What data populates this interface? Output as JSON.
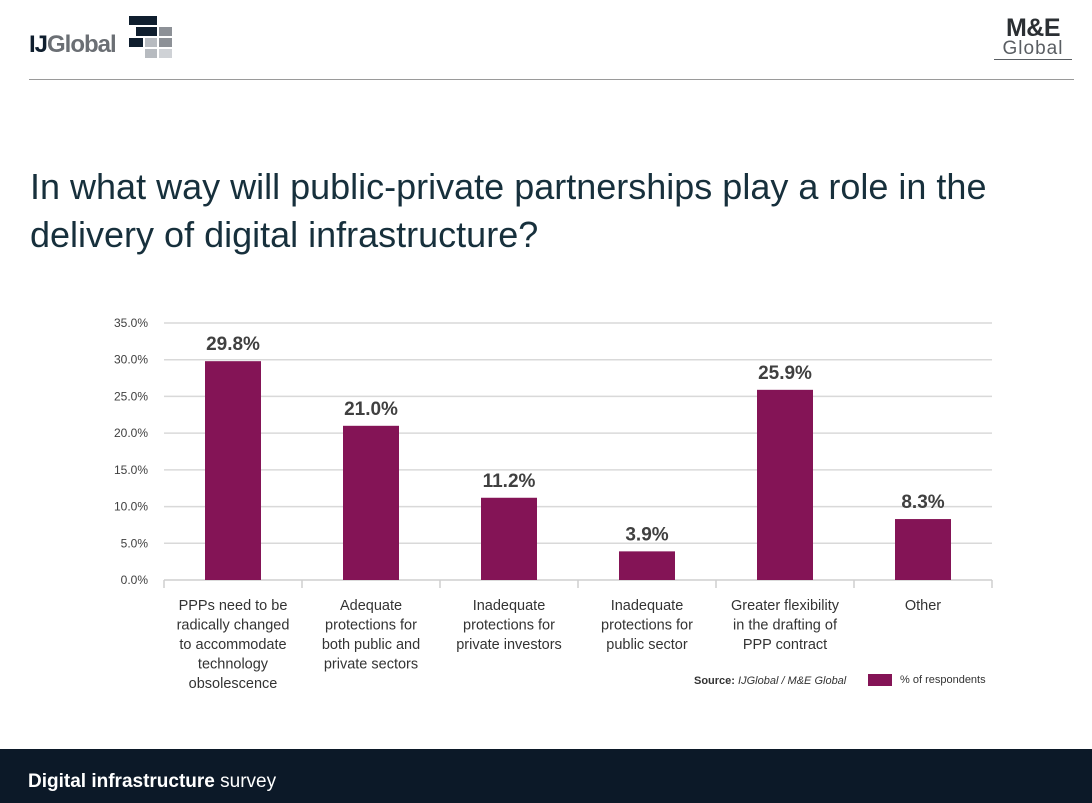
{
  "header": {
    "left_logo": {
      "ij": "IJ",
      "global": "Global"
    },
    "right_logo": {
      "top": "M&E",
      "bottom": "Global"
    }
  },
  "title": "In what way will public-private partnerships play a role in the delivery of digital infrastructure?",
  "colors": {
    "bar": "#841456",
    "footer": "#0c1928",
    "title": "#17303c"
  },
  "chart_data": {
    "type": "bar",
    "title": "",
    "xlabel": "",
    "ylabel": "",
    "categories": [
      [
        "PPPs need to be",
        "radically changed",
        "to accommodate",
        "technology",
        "obsolescence"
      ],
      [
        "Adequate",
        "protections for",
        "both public and",
        "private sectors"
      ],
      [
        "Inadequate",
        "protections for",
        "private investors"
      ],
      [
        "Inadequate",
        "protections for",
        "public sector"
      ],
      [
        "Greater flexibility",
        "in the drafting of",
        "PPP contract"
      ],
      [
        "Other"
      ]
    ],
    "series": [
      {
        "name": "% of respondents",
        "values": [
          29.8,
          21.0,
          11.2,
          3.9,
          25.9,
          8.3
        ]
      }
    ],
    "data_labels": [
      "29.8%",
      "21.0%",
      "11.2%",
      "3.9%",
      "25.9%",
      "8.3%"
    ],
    "yticks": [
      "0.0%",
      "5.0%",
      "10.0%",
      "15.0%",
      "20.0%",
      "25.0%",
      "30.0%",
      "35.0%"
    ],
    "ylim": [
      0,
      35
    ],
    "grid": true,
    "legend_position": "bottom-right"
  },
  "source": {
    "label": "Source:",
    "text": "IJGlobal / M&E Global"
  },
  "footer": {
    "bold": "Digital infrastructure",
    "rest": " survey"
  }
}
